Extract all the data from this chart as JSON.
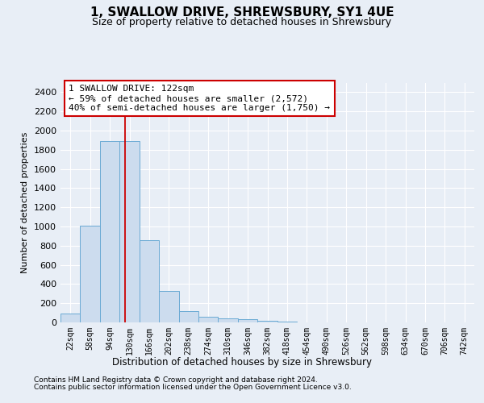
{
  "title": "1, SWALLOW DRIVE, SHREWSBURY, SY1 4UE",
  "subtitle": "Size of property relative to detached houses in Shrewsbury",
  "xlabel": "Distribution of detached houses by size in Shrewsbury",
  "ylabel": "Number of detached properties",
  "categories": [
    "22sqm",
    "58sqm",
    "94sqm",
    "130sqm",
    "166sqm",
    "202sqm",
    "238sqm",
    "274sqm",
    "310sqm",
    "346sqm",
    "382sqm",
    "418sqm",
    "454sqm",
    "490sqm",
    "526sqm",
    "562sqm",
    "598sqm",
    "634sqm",
    "670sqm",
    "706sqm",
    "742sqm"
  ],
  "values": [
    95,
    1010,
    1890,
    1890,
    860,
    325,
    120,
    55,
    40,
    32,
    18,
    8,
    4,
    3,
    2,
    2,
    1,
    1,
    1,
    1,
    1
  ],
  "bar_color": "#ccdcee",
  "bar_edge_color": "#6aaad4",
  "property_line_color": "#cc0000",
  "annotation_line1": "1 SWALLOW DRIVE: 122sqm",
  "annotation_line2": "← 59% of detached houses are smaller (2,572)",
  "annotation_line3": "40% of semi-detached houses are larger (1,750) →",
  "annotation_box_color": "#cc0000",
  "ylim": [
    0,
    2500
  ],
  "yticks": [
    0,
    200,
    400,
    600,
    800,
    1000,
    1200,
    1400,
    1600,
    1800,
    2000,
    2200,
    2400
  ],
  "footer_line1": "Contains HM Land Registry data © Crown copyright and database right 2024.",
  "footer_line2": "Contains public sector information licensed under the Open Government Licence v3.0.",
  "background_color": "#e8eef6",
  "plot_bg_color": "#e8eef6",
  "grid_color": "#ffffff",
  "title_fontsize": 11,
  "subtitle_fontsize": 9
}
